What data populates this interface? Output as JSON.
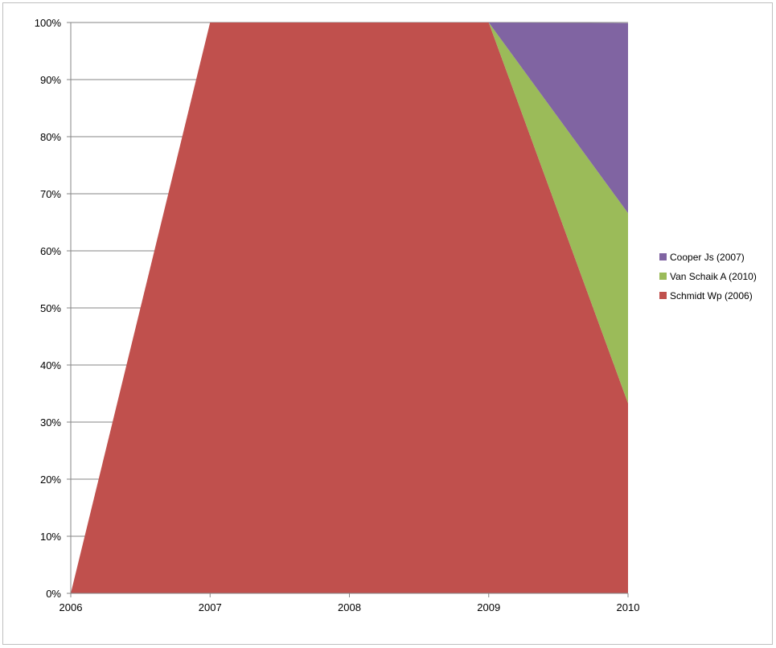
{
  "chart_data": {
    "type": "area",
    "stacking": "percent",
    "title": "",
    "xlabel": "",
    "ylabel": "",
    "x": [
      "2006",
      "2007",
      "2008",
      "2009",
      "2010"
    ],
    "ylim": [
      0,
      100
    ],
    "yticks": [
      0,
      10,
      20,
      30,
      40,
      50,
      60,
      70,
      80,
      90,
      100
    ],
    "ytick_labels": [
      "0%",
      "10%",
      "20%",
      "30%",
      "40%",
      "50%",
      "60%",
      "70%",
      "80%",
      "90%",
      "100%"
    ],
    "grid": "horizontal",
    "legend_position": "right",
    "series": [
      {
        "name": "Schmidt Wp (2006)",
        "color": "#c0504d",
        "values": [
          0,
          100,
          100,
          100,
          33.3
        ]
      },
      {
        "name": "Van Schaik A (2010)",
        "color": "#9bbb59",
        "values": [
          0,
          0,
          0,
          0,
          33.3
        ]
      },
      {
        "name": "Cooper Js (2007)",
        "color": "#8064a2",
        "values": [
          0,
          0,
          0,
          0,
          33.3
        ]
      }
    ]
  }
}
